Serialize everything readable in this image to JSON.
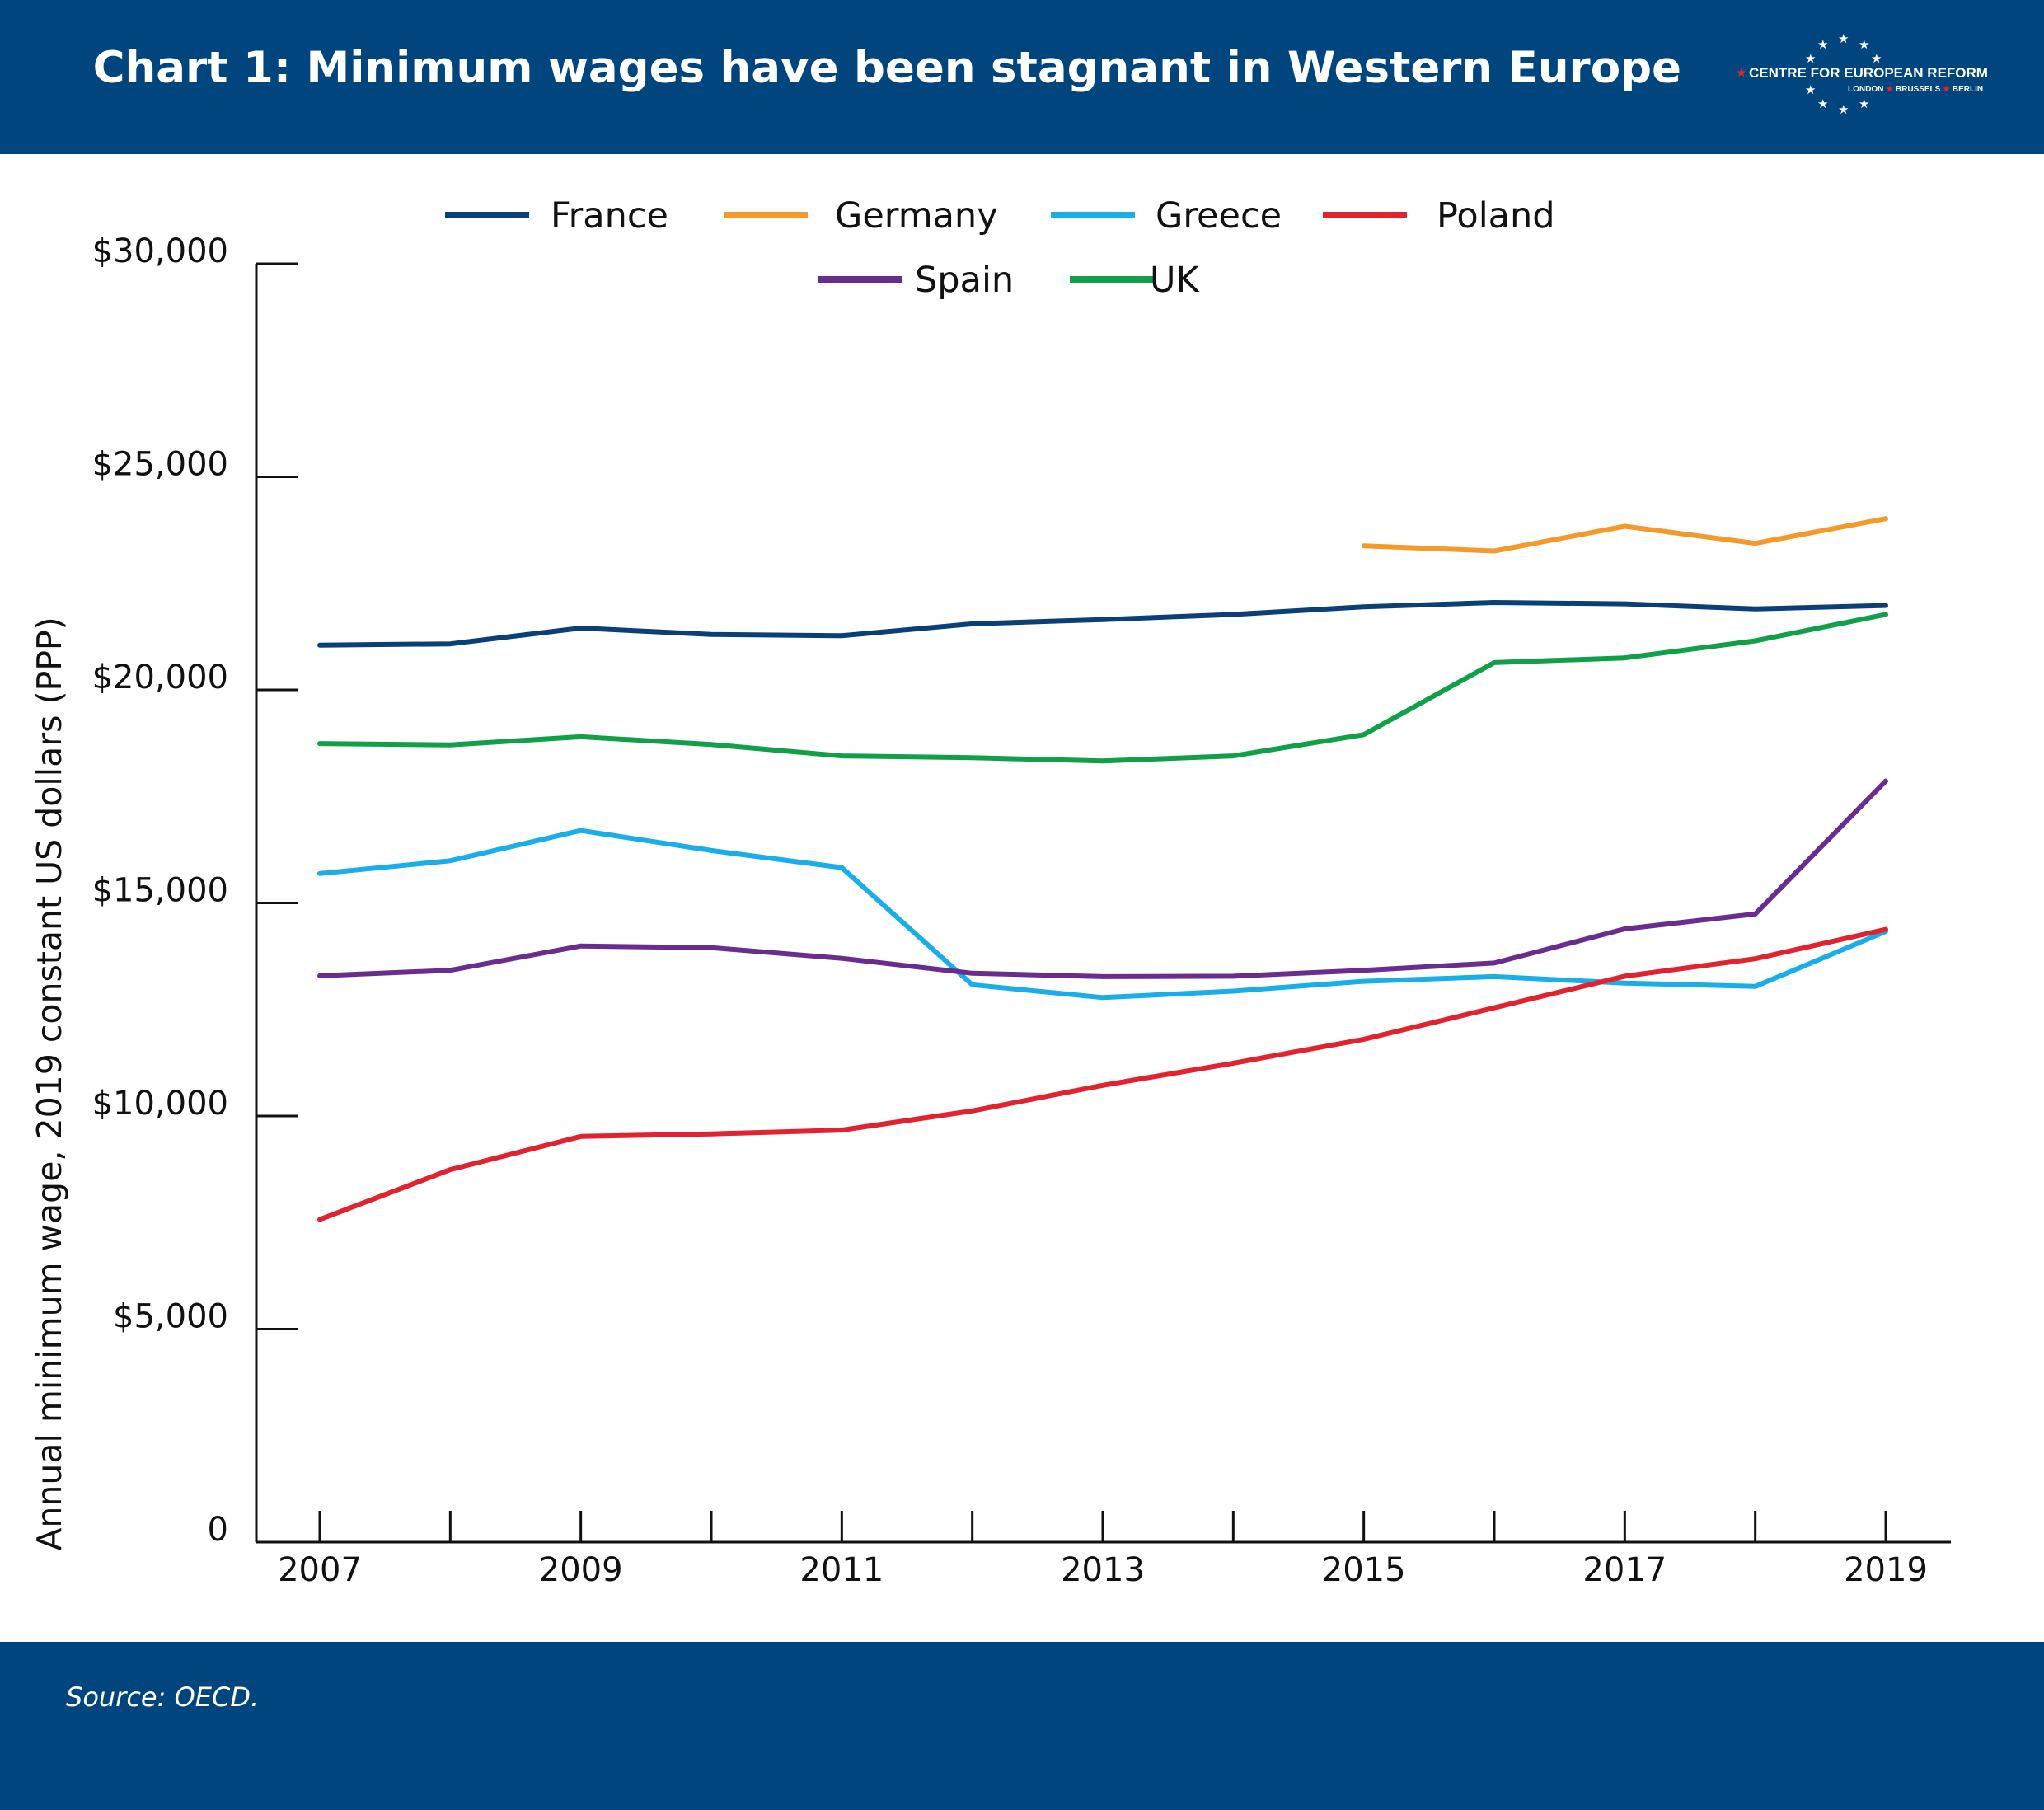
{
  "header": {
    "title": "Chart 1: Minimum wages have been stagnant in Western Europe",
    "background": "#00457e"
  },
  "logo": {
    "name": "CENTRE FOR EUROPEAN REFORM",
    "cities": [
      "LONDON",
      "BRUSSELS",
      "BERLIN"
    ]
  },
  "footer": {
    "source": "Source: OECD."
  },
  "chart_data": {
    "type": "line",
    "title": "Chart 1: Minimum wages have been stagnant in Western Europe",
    "xlabel": "",
    "ylabel": "Annual minimum wage, 2019 constant US dollars (PPP)",
    "x": [
      2007,
      2008,
      2009,
      2010,
      2011,
      2012,
      2013,
      2014,
      2015,
      2016,
      2017,
      2018,
      2019
    ],
    "x_tick_labels": [
      "2007",
      "2009",
      "2011",
      "2013",
      "2015",
      "2017",
      "2019"
    ],
    "ylim": [
      0,
      30000
    ],
    "y_ticks": [
      0,
      5000,
      10000,
      15000,
      20000,
      25000,
      30000
    ],
    "y_tick_labels": [
      "0",
      "$5,000",
      "$10,000",
      "$15,000",
      "$20,000",
      "$25,000",
      "$30,000"
    ],
    "grid": false,
    "legend_position": "top",
    "series": [
      {
        "name": "France",
        "color": "#0b3f78",
        "values": [
          21050,
          21080,
          21450,
          21300,
          21270,
          21550,
          21650,
          21770,
          21950,
          22050,
          22020,
          21900,
          21980
        ]
      },
      {
        "name": "Germany",
        "color": "#f39a2b",
        "values": [
          null,
          null,
          null,
          null,
          null,
          null,
          null,
          null,
          23380,
          23260,
          23840,
          23440,
          24020
        ]
      },
      {
        "name": "Greece",
        "color": "#1aaee8",
        "values": [
          15690,
          15990,
          16700,
          16230,
          15830,
          13080,
          12780,
          12930,
          13160,
          13270,
          13120,
          13040,
          14330
        ]
      },
      {
        "name": "Poland",
        "color": "#e1232f",
        "values": [
          7570,
          8740,
          9520,
          9580,
          9670,
          10120,
          10720,
          11240,
          11800,
          12540,
          13280,
          13690,
          14380
        ]
      },
      {
        "name": "Spain",
        "color": "#6a2d8f",
        "values": [
          13290,
          13420,
          13990,
          13950,
          13700,
          13350,
          13270,
          13280,
          13420,
          13590,
          14390,
          14740,
          17860
        ]
      },
      {
        "name": "UK",
        "color": "#11a04a",
        "values": [
          18740,
          18710,
          18900,
          18720,
          18450,
          18410,
          18330,
          18450,
          18950,
          20640,
          20750,
          21150,
          21770
        ]
      }
    ]
  }
}
